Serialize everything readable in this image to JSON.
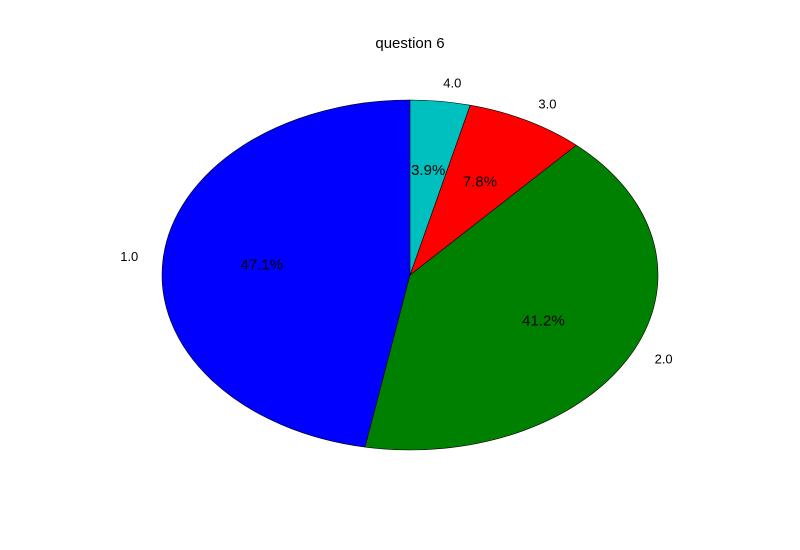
{
  "chart_data": {
    "type": "pie",
    "title": "question 6",
    "start_angle": "90 degrees, counter-clockwise",
    "slices": [
      {
        "label": "1.0",
        "value": 47.1,
        "pct_label": "47.1%",
        "color": "#0000ff"
      },
      {
        "label": "2.0",
        "value": 41.2,
        "pct_label": "41.2%",
        "color": "#008000"
      },
      {
        "label": "3.0",
        "value": 7.8,
        "pct_label": "7.8%",
        "color": "#ff0000"
      },
      {
        "label": "4.0",
        "value": 3.9,
        "pct_label": "3.9%",
        "color": "#00bfbf"
      }
    ]
  }
}
